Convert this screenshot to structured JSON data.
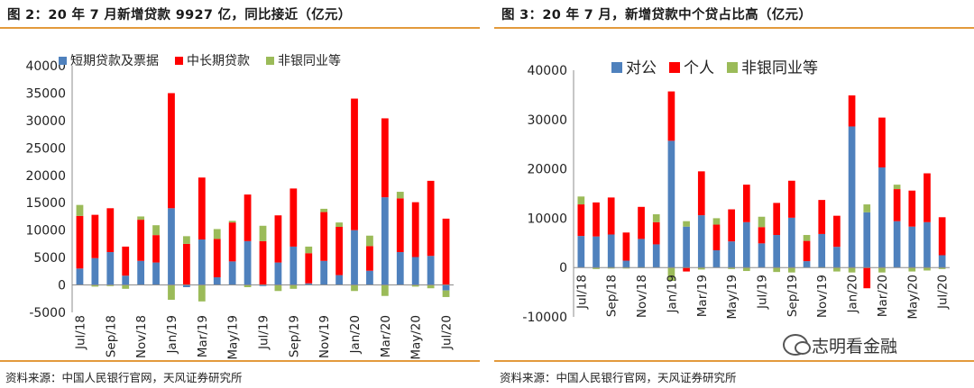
{
  "left_panel": {
    "title": "图 2：20 年 7 月新增贷款 9927 亿，同比接近（亿元）",
    "source": "资料来源：中国人民银行官网，天风证券研究所"
  },
  "right_panel": {
    "title": "图 3：20 年 7 月，新增贷款中个贷占比高（亿元）",
    "source": "资料来源：中国人民银行官网，天风证券研究所"
  },
  "watermark": "志明看金融",
  "chart_data": [
    {
      "type": "bar",
      "stacked": true,
      "categories": [
        "Jul/18",
        "Aug/18",
        "Sep/18",
        "Oct/18",
        "Nov/18",
        "Dec/18",
        "Jan/19",
        "Feb/19",
        "Mar/19",
        "Apr/19",
        "May/19",
        "Jun/19",
        "Jul/19",
        "Aug/19",
        "Sep/19",
        "Oct/19",
        "Nov/19",
        "Dec/19",
        "Jan/20",
        "Feb/20",
        "Mar/20",
        "Apr/20",
        "May/20",
        "Jun/20",
        "Jul/20"
      ],
      "x_tick_labels": [
        "Jul/18",
        "Sep/18",
        "Nov/18",
        "Jan/19",
        "Mar/19",
        "May/19",
        "Jul/19",
        "Sep/19",
        "Nov/19",
        "Jan/20",
        "Mar/20",
        "May/20",
        "Jul/20"
      ],
      "y_ticks": [
        -5000,
        0,
        5000,
        10000,
        15000,
        20000,
        25000,
        30000,
        35000,
        40000
      ],
      "ylim": [
        -5000,
        40000
      ],
      "legend_position": "top",
      "series": [
        {
          "name": "短期贷款及票据",
          "color": "#4f81bd",
          "values": [
            3000,
            4900,
            6000,
            1700,
            4400,
            4100,
            14000,
            -400,
            8300,
            1400,
            4300,
            8000,
            -200,
            4100,
            7000,
            300,
            4400,
            1800,
            10000,
            2600,
            16000,
            6000,
            5100,
            5300,
            -1000
          ]
        },
        {
          "name": "中长期贷款",
          "color": "#ff0000",
          "values": [
            9600,
            7900,
            8000,
            5300,
            7500,
            5000,
            21000,
            7500,
            11300,
            7000,
            7100,
            8500,
            8000,
            8600,
            10600,
            5500,
            8900,
            8800,
            24000,
            4500,
            14400,
            9800,
            10000,
            13700,
            12100
          ]
        },
        {
          "name": "非银同业等",
          "color": "#9bbb59",
          "values": [
            2000,
            -300,
            -200,
            -700,
            600,
            1800,
            -2700,
            1400,
            -3000,
            1800,
            300,
            -400,
            2800,
            -1100,
            -700,
            1200,
            600,
            800,
            -1100,
            1900,
            -2000,
            1200,
            -300,
            -600,
            -1200
          ]
        }
      ]
    },
    {
      "type": "bar",
      "stacked": true,
      "categories": [
        "Jul/18",
        "Aug/18",
        "Sep/18",
        "Oct/18",
        "Nov/18",
        "Dec/18",
        "Jan/19",
        "Feb/19",
        "Mar/19",
        "Apr/19",
        "May/19",
        "Jun/19",
        "Jul/19",
        "Aug/19",
        "Sep/19",
        "Oct/19",
        "Nov/19",
        "Dec/19",
        "Jan/20",
        "Feb/20",
        "Mar/20",
        "Apr/20",
        "May/20",
        "Jun/20",
        "Jul/20"
      ],
      "x_tick_labels": [
        "Jul/18",
        "Sep/18",
        "Nov/18",
        "Jan/19",
        "Mar/19",
        "May/19",
        "Jul/19",
        "Sep/19",
        "Nov/19",
        "Jan/20",
        "Mar/20",
        "May/20",
        "Jul/20"
      ],
      "y_ticks": [
        -10000,
        0,
        10000,
        20000,
        30000,
        40000
      ],
      "ylim": [
        -10000,
        40000
      ],
      "legend_position": "top",
      "series": [
        {
          "name": "对公",
          "color": "#4f81bd",
          "values": [
            6400,
            6300,
            6700,
            1400,
            5800,
            4700,
            25700,
            8300,
            10600,
            3500,
            5300,
            9200,
            4900,
            6600,
            10100,
            1300,
            6800,
            4200,
            28600,
            11200,
            20300,
            9400,
            8300,
            9200,
            2500
          ]
        },
        {
          "name": "个人",
          "color": "#ff0000",
          "values": [
            6400,
            6900,
            7500,
            5700,
            6500,
            4500,
            10000,
            -800,
            8900,
            5200,
            6500,
            7600,
            3300,
            6500,
            7500,
            4100,
            6900,
            6300,
            6300,
            -4200,
            10100,
            6500,
            7300,
            9900,
            7700
          ]
        },
        {
          "name": "非银同业等",
          "color": "#9bbb59",
          "values": [
            1600,
            -300,
            -200,
            -200,
            -100,
            1600,
            -2700,
            1100,
            -400,
            1300,
            -300,
            -700,
            2100,
            -900,
            -1000,
            1200,
            -100,
            -800,
            -1000,
            1600,
            -1000,
            900,
            -800,
            -600,
            -300
          ]
        }
      ]
    }
  ]
}
